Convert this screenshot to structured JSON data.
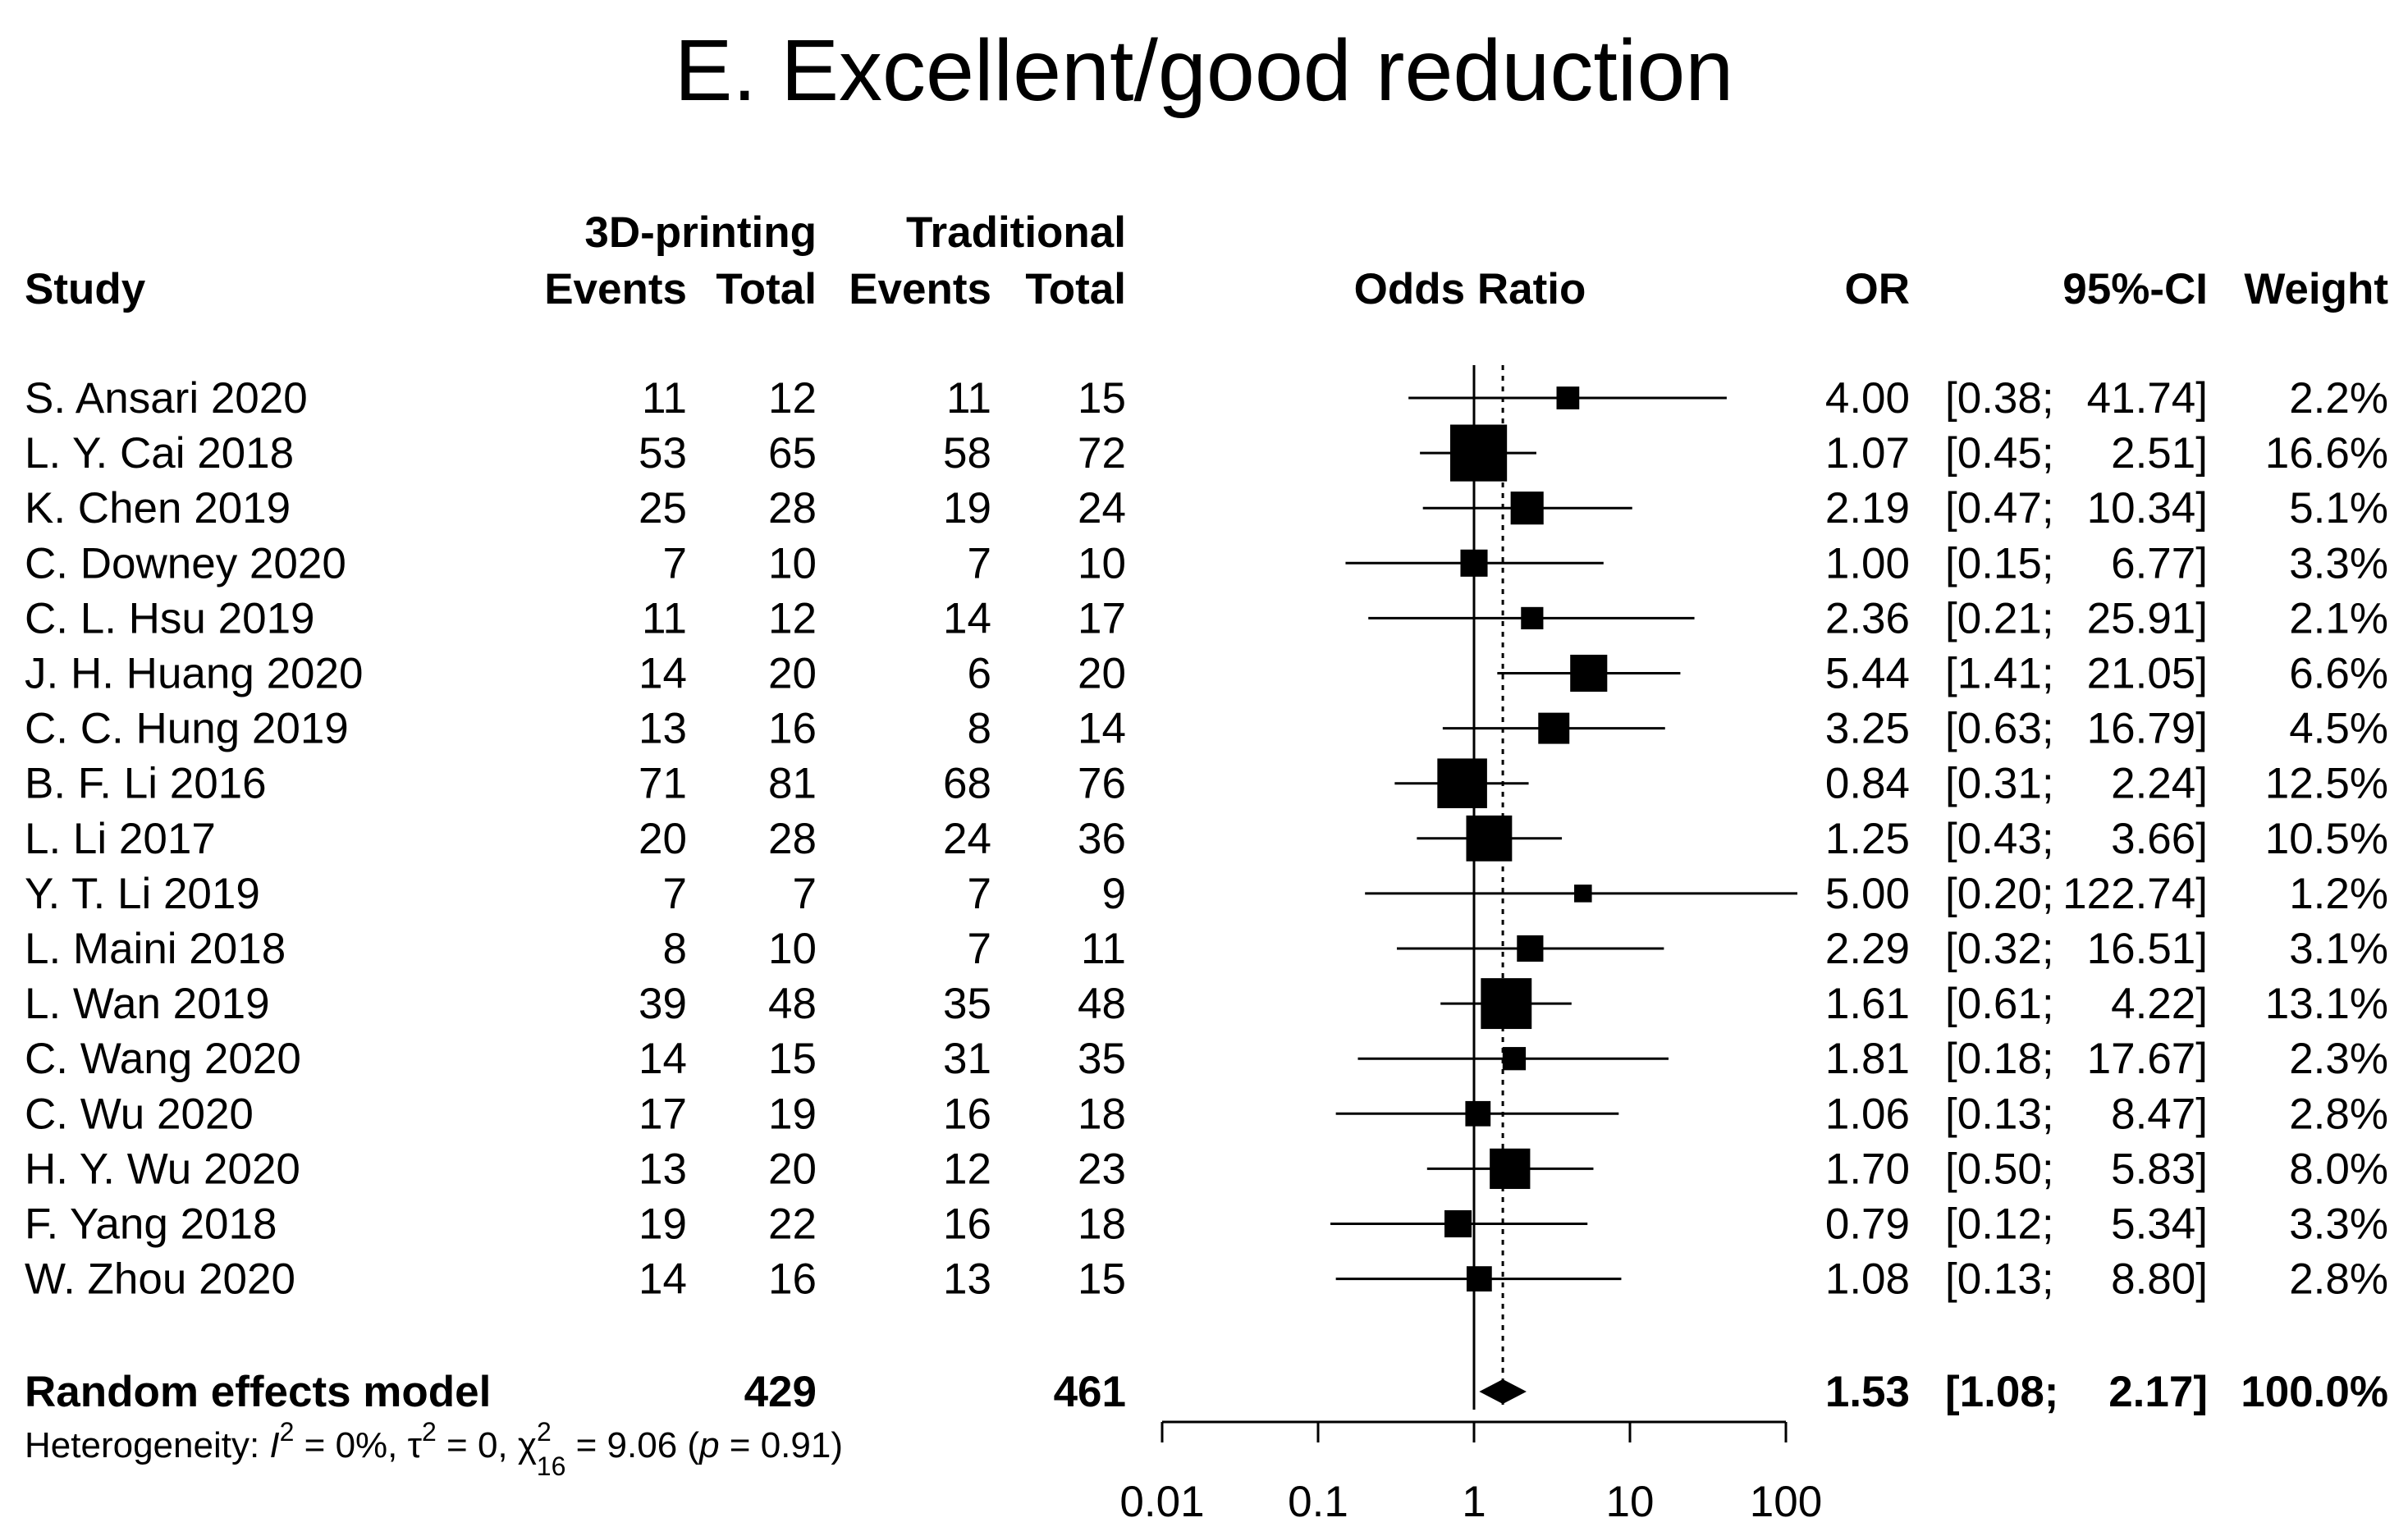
{
  "chart_data": {
    "type": "forest",
    "title": "E. Excellent/good reduction",
    "headers": {
      "group1": "3D-printing",
      "group2": "Traditional",
      "study": "Study",
      "events1": "Events",
      "total1": "Total",
      "events2": "Events",
      "total2": "Total",
      "plot": "Odds Ratio",
      "or": "OR",
      "ci": "95%-CI",
      "weight": "Weight"
    },
    "studies": [
      {
        "study": "S. Ansari 2020",
        "events1": "11",
        "total1": "12",
        "events2": "11",
        "total2": "15",
        "or": 4.0,
        "lower": 0.38,
        "upper": 41.74,
        "or_text": "4.00",
        "ci_low_text": "[0.38;",
        "ci_high_text": "41.74]",
        "weight": 2.2,
        "weight_text": "2.2%"
      },
      {
        "study": "L. Y. Cai 2018",
        "events1": "53",
        "total1": "65",
        "events2": "58",
        "total2": "72",
        "or": 1.07,
        "lower": 0.45,
        "upper": 2.51,
        "or_text": "1.07",
        "ci_low_text": "[0.45;",
        "ci_high_text": "2.51]",
        "weight": 16.6,
        "weight_text": "16.6%"
      },
      {
        "study": "K. Chen 2019",
        "events1": "25",
        "total1": "28",
        "events2": "19",
        "total2": "24",
        "or": 2.19,
        "lower": 0.47,
        "upper": 10.34,
        "or_text": "2.19",
        "ci_low_text": "[0.47;",
        "ci_high_text": "10.34]",
        "weight": 5.1,
        "weight_text": "5.1%"
      },
      {
        "study": "C. Downey 2020",
        "events1": "7",
        "total1": "10",
        "events2": "7",
        "total2": "10",
        "or": 1.0,
        "lower": 0.15,
        "upper": 6.77,
        "or_text": "1.00",
        "ci_low_text": "[0.15;",
        "ci_high_text": "6.77]",
        "weight": 3.3,
        "weight_text": "3.3%"
      },
      {
        "study": "C. L. Hsu 2019",
        "events1": "11",
        "total1": "12",
        "events2": "14",
        "total2": "17",
        "or": 2.36,
        "lower": 0.21,
        "upper": 25.91,
        "or_text": "2.36",
        "ci_low_text": "[0.21;",
        "ci_high_text": "25.91]",
        "weight": 2.1,
        "weight_text": "2.1%"
      },
      {
        "study": "J. H. Huang 2020",
        "events1": "14",
        "total1": "20",
        "events2": "6",
        "total2": "20",
        "or": 5.44,
        "lower": 1.41,
        "upper": 21.05,
        "or_text": "5.44",
        "ci_low_text": "[1.41;",
        "ci_high_text": "21.05]",
        "weight": 6.6,
        "weight_text": "6.6%"
      },
      {
        "study": "C. C. Hung 2019",
        "events1": "13",
        "total1": "16",
        "events2": "8",
        "total2": "14",
        "or": 3.25,
        "lower": 0.63,
        "upper": 16.79,
        "or_text": "3.25",
        "ci_low_text": "[0.63;",
        "ci_high_text": "16.79]",
        "weight": 4.5,
        "weight_text": "4.5%"
      },
      {
        "study": "B. F. Li 2016",
        "events1": "71",
        "total1": "81",
        "events2": "68",
        "total2": "76",
        "or": 0.84,
        "lower": 0.31,
        "upper": 2.24,
        "or_text": "0.84",
        "ci_low_text": "[0.31;",
        "ci_high_text": "2.24]",
        "weight": 12.5,
        "weight_text": "12.5%"
      },
      {
        "study": "L. Li 2017",
        "events1": "20",
        "total1": "28",
        "events2": "24",
        "total2": "36",
        "or": 1.25,
        "lower": 0.43,
        "upper": 3.66,
        "or_text": "1.25",
        "ci_low_text": "[0.43;",
        "ci_high_text": "3.66]",
        "weight": 10.5,
        "weight_text": "10.5%"
      },
      {
        "study": "Y. T. Li 2019",
        "events1": "7",
        "total1": "7",
        "events2": "7",
        "total2": "9",
        "or": 5.0,
        "lower": 0.2,
        "upper": 122.74,
        "or_text": "5.00",
        "ci_low_text": "[0.20;",
        "ci_high_text": "122.74]",
        "weight": 1.2,
        "weight_text": "1.2%"
      },
      {
        "study": "L. Maini 2018",
        "events1": "8",
        "total1": "10",
        "events2": "7",
        "total2": "11",
        "or": 2.29,
        "lower": 0.32,
        "upper": 16.51,
        "or_text": "2.29",
        "ci_low_text": "[0.32;",
        "ci_high_text": "16.51]",
        "weight": 3.1,
        "weight_text": "3.1%"
      },
      {
        "study": "L. Wan 2019",
        "events1": "39",
        "total1": "48",
        "events2": "35",
        "total2": "48",
        "or": 1.61,
        "lower": 0.61,
        "upper": 4.22,
        "or_text": "1.61",
        "ci_low_text": "[0.61;",
        "ci_high_text": "4.22]",
        "weight": 13.1,
        "weight_text": "13.1%"
      },
      {
        "study": "C. Wang 2020",
        "events1": "14",
        "total1": "15",
        "events2": "31",
        "total2": "35",
        "or": 1.81,
        "lower": 0.18,
        "upper": 17.67,
        "or_text": "1.81",
        "ci_low_text": "[0.18;",
        "ci_high_text": "17.67]",
        "weight": 2.3,
        "weight_text": "2.3%"
      },
      {
        "study": "C. Wu 2020",
        "events1": "17",
        "total1": "19",
        "events2": "16",
        "total2": "18",
        "or": 1.06,
        "lower": 0.13,
        "upper": 8.47,
        "or_text": "1.06",
        "ci_low_text": "[0.13;",
        "ci_high_text": "8.47]",
        "weight": 2.8,
        "weight_text": "2.8%"
      },
      {
        "study": "H. Y. Wu 2020",
        "events1": "13",
        "total1": "20",
        "events2": "12",
        "total2": "23",
        "or": 1.7,
        "lower": 0.5,
        "upper": 5.83,
        "or_text": "1.70",
        "ci_low_text": "[0.50;",
        "ci_high_text": "5.83]",
        "weight": 8.0,
        "weight_text": "8.0%"
      },
      {
        "study": "F. Yang 2018",
        "events1": "19",
        "total1": "22",
        "events2": "16",
        "total2": "18",
        "or": 0.79,
        "lower": 0.12,
        "upper": 5.34,
        "or_text": "0.79",
        "ci_low_text": "[0.12;",
        "ci_high_text": "5.34]",
        "weight": 3.3,
        "weight_text": "3.3%"
      },
      {
        "study": "W. Zhou 2020",
        "events1": "14",
        "total1": "16",
        "events2": "13",
        "total2": "15",
        "or": 1.08,
        "lower": 0.13,
        "upper": 8.8,
        "or_text": "1.08",
        "ci_low_text": "[0.13;",
        "ci_high_text": "8.80]",
        "weight": 2.8,
        "weight_text": "2.8%"
      }
    ],
    "pooled": {
      "label": "Random effects model",
      "total1": "429",
      "total2": "461",
      "or": 1.53,
      "lower": 1.08,
      "upper": 2.17,
      "or_text": "1.53",
      "ci_low_text": "[1.08;",
      "ci_high_text": "2.17]",
      "weight_text": "100.0%"
    },
    "heterogeneity": {
      "prefix": "Heterogeneity: ",
      "i2_symbol": "I",
      "i2_sup": "2",
      "i2_value": " = 0%, ",
      "tau_symbol": "τ",
      "tau_sup": "2",
      "tau_value": " = 0, ",
      "chi_symbol": "χ",
      "chi_sup": "2",
      "chi_sub": "16",
      "chi_value": " = 9.06 (",
      "p_symbol": "p",
      "p_value": " = 0.91)"
    },
    "x_axis": {
      "scale": "log",
      "range": [
        0.01,
        100
      ],
      "ticks": [
        0.01,
        0.1,
        1,
        10,
        100
      ],
      "tick_labels": [
        "0.01",
        "0.1",
        "1",
        "10",
        "100"
      ],
      "reference_line": 1
    }
  }
}
